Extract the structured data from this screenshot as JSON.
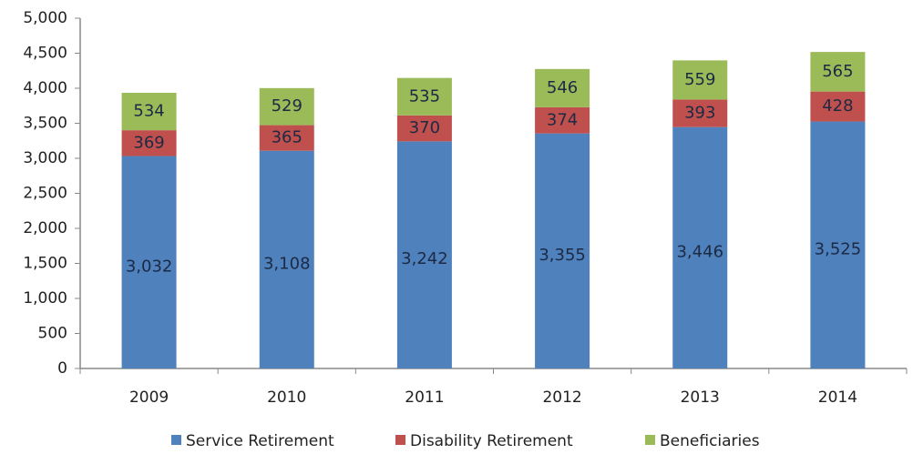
{
  "chart_data": {
    "type": "bar",
    "stacked": true,
    "categories": [
      "2009",
      "2010",
      "2011",
      "2012",
      "2013",
      "2014"
    ],
    "series": [
      {
        "name": "Service Retirement",
        "color": "#4f81bd",
        "values": [
          3032,
          3108,
          3242,
          3355,
          3446,
          3525
        ],
        "value_labels": [
          "3,032",
          "3,108",
          "3,242",
          "3,355",
          "3,446",
          "3,525"
        ]
      },
      {
        "name": "Disability Retirement",
        "color": "#c0504d",
        "values": [
          369,
          365,
          370,
          374,
          393,
          428
        ]
      },
      {
        "name": "Beneficiaries",
        "color": "#9bbb59",
        "values": [
          534,
          529,
          535,
          546,
          559,
          565
        ]
      }
    ],
    "ylim": [
      0,
      5000
    ],
    "yticks": [
      0,
      500,
      {
        "value": 1000,
        "label": "1,000"
      },
      {
        "value": 1500,
        "label": "1,500"
      },
      {
        "value": 2000,
        "label": "2,000"
      },
      {
        "value": 2500,
        "label": "2,500"
      },
      {
        "value": 3000,
        "label": "3,000"
      },
      {
        "value": 3500,
        "label": "3,500"
      },
      {
        "value": 4000,
        "label": "4,000"
      },
      {
        "value": 4500,
        "label": "4,500"
      },
      {
        "value": 5000,
        "label": "5,000"
      }
    ],
    "grid": false,
    "legend": "bottom"
  }
}
